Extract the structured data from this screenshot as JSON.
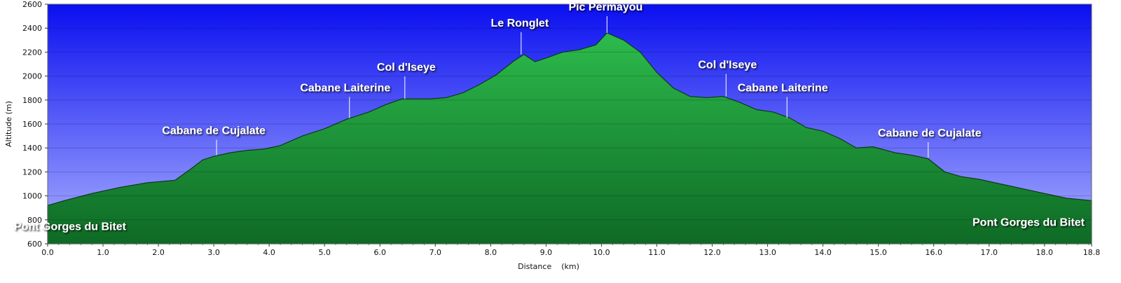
{
  "chart_data": {
    "type": "area",
    "xlabel": "Distance    (km)",
    "ylabel": "Altitude (m)",
    "xlim": [
      0,
      18.85
    ],
    "ylim": [
      600,
      2600
    ],
    "x_ticks": [
      "0.0",
      "1.0",
      "2.0",
      "3.0",
      "4.0",
      "5.0",
      "6.0",
      "7.0",
      "8.0",
      "9.0",
      "10.0",
      "11.0",
      "12.0",
      "13.0",
      "14.0",
      "15.0",
      "16.0",
      "17.0",
      "18.0",
      "18.8"
    ],
    "y_ticks": [
      "600",
      "800",
      "1000",
      "1200",
      "1400",
      "1600",
      "1800",
      "2000",
      "2200",
      "2400",
      "2600"
    ],
    "grid": true,
    "colors": {
      "sky_top": "#0a0ff0",
      "sky_bottom": "#aab0ff",
      "fill_top": "#2dbb4c",
      "fill_bottom": "#0e6a25",
      "outline": "#0c3a14"
    },
    "x": [
      0.0,
      0.3,
      0.8,
      1.3,
      1.8,
      2.3,
      2.6,
      2.8,
      3.0,
      3.3,
      3.6,
      3.9,
      4.2,
      4.6,
      5.0,
      5.4,
      5.8,
      6.1,
      6.4,
      6.6,
      6.9,
      7.2,
      7.5,
      7.8,
      8.1,
      8.4,
      8.6,
      8.8,
      9.0,
      9.3,
      9.6,
      9.9,
      10.1,
      10.4,
      10.7,
      11.0,
      11.3,
      11.6,
      11.9,
      12.2,
      12.5,
      12.8,
      13.1,
      13.4,
      13.7,
      14.0,
      14.3,
      14.6,
      14.9,
      15.3,
      15.6,
      15.9,
      16.2,
      16.5,
      16.8,
      17.2,
      17.6,
      18.0,
      18.4,
      18.85
    ],
    "values": [
      920,
      960,
      1020,
      1070,
      1110,
      1130,
      1230,
      1300,
      1330,
      1360,
      1380,
      1390,
      1420,
      1500,
      1560,
      1640,
      1700,
      1760,
      1810,
      1810,
      1810,
      1820,
      1860,
      1930,
      2010,
      2120,
      2180,
      2120,
      2150,
      2200,
      2220,
      2260,
      2360,
      2300,
      2200,
      2030,
      1900,
      1830,
      1820,
      1830,
      1780,
      1720,
      1700,
      1650,
      1570,
      1540,
      1480,
      1400,
      1410,
      1360,
      1340,
      1310,
      1200,
      1160,
      1140,
      1100,
      1060,
      1020,
      980,
      960
    ],
    "annotations": [
      {
        "label": "Pont Gorges du Bitet",
        "x": 0.3,
        "y": 960,
        "line": false
      },
      {
        "label": "Cabane de Cujalate",
        "x": 3.05,
        "y": 1340,
        "line": true
      },
      {
        "label": "Cabane Laiterine",
        "x": 5.45,
        "y": 1650,
        "line": true
      },
      {
        "label": "Col d'Iseye",
        "x": 6.45,
        "y": 1810,
        "line": true
      },
      {
        "label": "Le Ronglet",
        "x": 8.55,
        "y": 2180,
        "line": true
      },
      {
        "label": "Pic Permayou",
        "x": 10.1,
        "y": 2360,
        "line": true
      },
      {
        "label": "Col d'Iseye",
        "x": 12.25,
        "y": 1830,
        "line": true
      },
      {
        "label": "Cabane Laiterine",
        "x": 13.35,
        "y": 1650,
        "line": true
      },
      {
        "label": "Cabane de Cujalate",
        "x": 15.9,
        "y": 1320,
        "line": true
      },
      {
        "label": "Pont Gorges du Bitet",
        "x": 18.6,
        "y": 965,
        "line": false
      }
    ]
  }
}
